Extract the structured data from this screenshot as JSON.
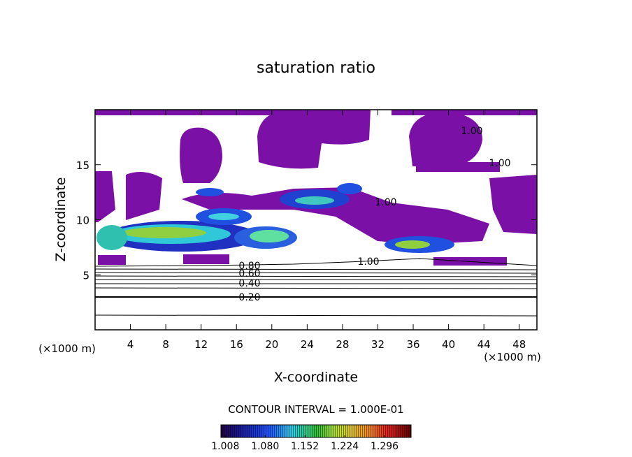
{
  "chart_data": {
    "type": "contour",
    "title": "saturation ratio",
    "x_label": "X-coordinate",
    "y_label": "Z-coordinate",
    "x_unit": "(×1000 m)",
    "y_unit": "(×1000 m)",
    "xlim": [
      0,
      50
    ],
    "xticks": [
      4,
      8,
      12,
      16,
      20,
      24,
      28,
      32,
      36,
      40,
      44,
      48
    ],
    "ylim": [
      0,
      20
    ],
    "yticks": [
      5,
      10,
      15
    ],
    "contour_labels": [
      {
        "value": 0.2,
        "label": "0.20"
      },
      {
        "value": 0.4,
        "label": "0.40"
      },
      {
        "value": 0.6,
        "label": "0.60"
      },
      {
        "value": 0.8,
        "label": "0.80"
      },
      {
        "value": 1.0,
        "label": "1.00"
      },
      {
        "value": 1.0,
        "label": "1.00"
      },
      {
        "value": 1.0,
        "label": "1.00"
      },
      {
        "value": 1.0,
        "label": "1.00"
      }
    ],
    "interval_text": "CONTOUR INTERVAL = 1.000E-01",
    "colorbar": {
      "clim": [
        1.0,
        1.344
      ],
      "ticks": [
        {
          "value": 1.008,
          "label": "1.008"
        },
        {
          "value": 1.08,
          "label": "1.080"
        },
        {
          "value": 1.152,
          "label": "1.152"
        },
        {
          "value": 1.224,
          "label": "1.224"
        },
        {
          "value": 1.296,
          "label": "1.296"
        }
      ]
    },
    "fill_color": "#7a10a6"
  }
}
